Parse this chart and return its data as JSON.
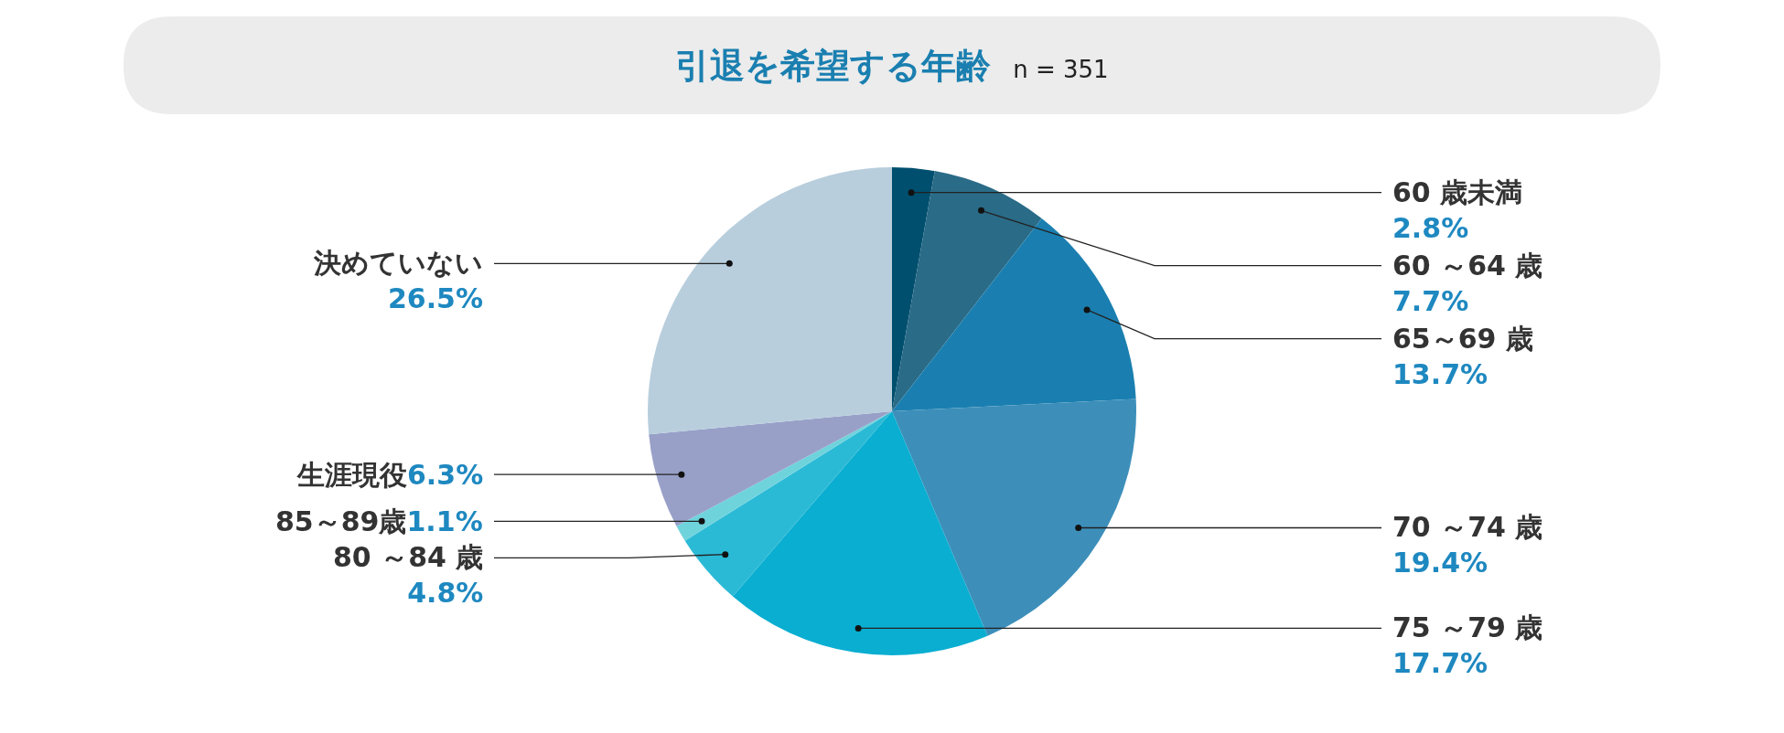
{
  "chart_data": {
    "type": "pie",
    "title": "引退を希望する年齢",
    "subtitle": "n = 351",
    "categories": [
      "60 歳未満",
      "60 ～64 歳",
      "65～69 歳",
      "70 ～74 歳",
      "75 ～79 歳",
      "80 ～84 歳",
      "85～89歳",
      "生涯現役",
      "決めていない"
    ],
    "values": [
      2.8,
      7.7,
      13.7,
      19.4,
      17.7,
      4.8,
      1.1,
      6.3,
      26.5
    ],
    "colors": [
      "#004f6e",
      "#2a6b87",
      "#1a7fb0",
      "#3d8fba",
      "#0aaed1",
      "#2bbad6",
      "#6fd3dc",
      "#98a0c8",
      "#b8cedd"
    ],
    "value_labels": [
      "2.8%",
      "7.7%",
      "13.7%",
      "19.4%",
      "17.7%",
      "4.8%",
      "1.1%",
      "6.3%",
      "26.5%"
    ]
  }
}
